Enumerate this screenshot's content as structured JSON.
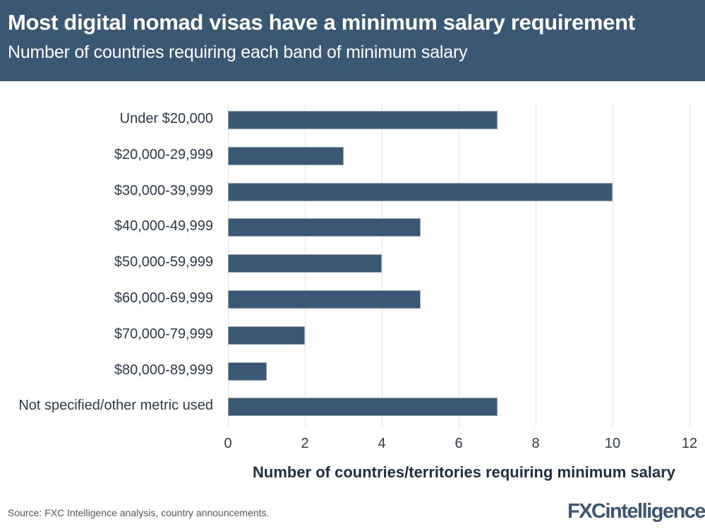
{
  "header": {
    "title": "Most digital nomad visas have a minimum salary requirement",
    "subtitle": "Number of countries requiring each band of minimum salary"
  },
  "colors": {
    "header_bg": "#3a5774",
    "bar": "#3a5774",
    "grid": "#e3e3e3"
  },
  "chart_data": {
    "type": "bar",
    "orientation": "horizontal",
    "title": "Most digital nomad visas have a minimum salary requirement",
    "subtitle": "Number of countries requiring each band of minimum salary",
    "categories": [
      "Under $20,000",
      "$20,000-29,999",
      "$30,000-39,999",
      "$40,000-49,999",
      "$50,000-59,999",
      "$60,000-69,999",
      "$70,000-79,999",
      "$80,000-89,999",
      "Not specified/other metric used"
    ],
    "values": [
      7,
      3,
      10,
      5,
      4,
      5,
      2,
      1,
      7
    ],
    "xlabel": "Number of countries/territories requiring minimum salary",
    "ylabel": "",
    "xlim": [
      0,
      12
    ],
    "xticks": [
      "0",
      "2",
      "4",
      "6",
      "8",
      "10",
      "12"
    ],
    "grid": true,
    "legend": null
  },
  "footer": {
    "source": "Source: FXC Intelligence analysis, country announcements.",
    "logo": "FXCintelligence",
    "logo_tm": "™"
  }
}
